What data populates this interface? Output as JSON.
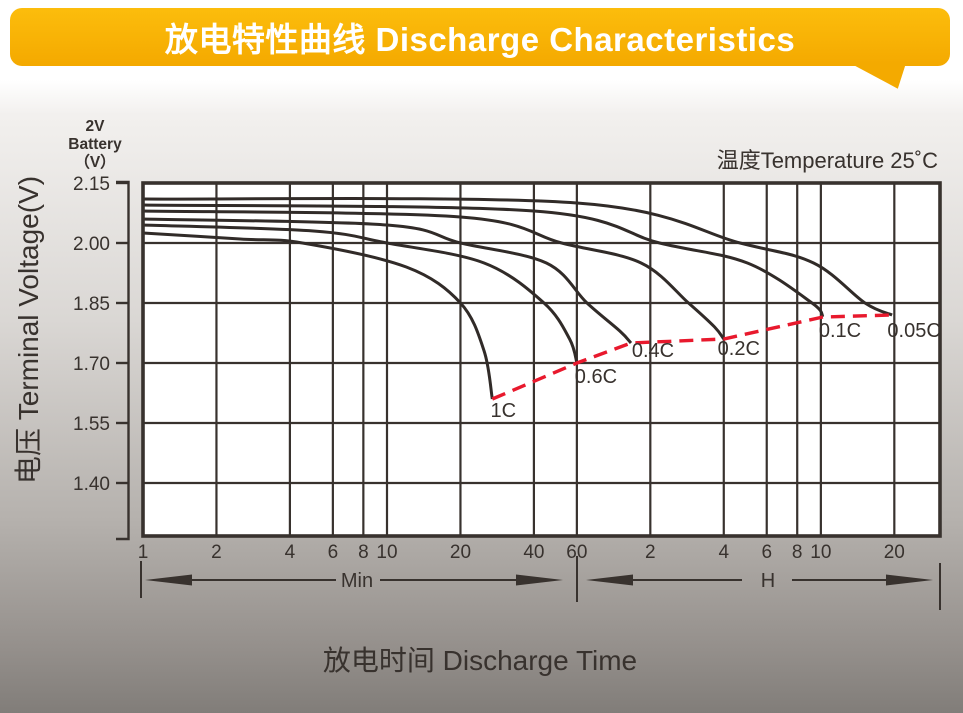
{
  "header": {
    "title": "放电特性曲线 Discharge Characteristics",
    "banner_color": "#f6ae03"
  },
  "chart": {
    "unit_label_lines": [
      "2V",
      "Battery",
      "（V）"
    ],
    "y_axis_title": "电压 Terminal Voltage(V)",
    "x_axis_title": "放电时间 Discharge Time",
    "temperature_note": "温度Temperature 25˚C",
    "range_labels": {
      "minutes": "Min",
      "hours": "H"
    }
  },
  "chart_data": {
    "type": "line",
    "title": "放电特性曲线 Discharge Characteristics",
    "xlabel": "放电时间 Discharge Time (log scale: 1–60 Min, then 2–20 H)",
    "ylabel": "电压 Terminal Voltage(V)",
    "annotation": "温度Temperature 25˚C",
    "x_scale": "log",
    "grid": true,
    "ylim": [
      1.27,
      2.15
    ],
    "y_ticks": [
      {
        "label": "2.15",
        "v": 2.15
      },
      {
        "label": "2.00",
        "v": 2.0
      },
      {
        "label": "1.85",
        "v": 1.85
      },
      {
        "label": "1.70",
        "v": 1.7
      },
      {
        "label": "1.55",
        "v": 1.55
      },
      {
        "label": "1.40",
        "v": 1.4
      }
    ],
    "x_ticks": [
      {
        "label": "1",
        "t": 1
      },
      {
        "label": "2",
        "t": 2
      },
      {
        "label": "4",
        "t": 4
      },
      {
        "label": "6",
        "t": 6
      },
      {
        "label": "8",
        "t": 8
      },
      {
        "label": "10",
        "t": 10
      },
      {
        "label": "20",
        "t": 20
      },
      {
        "label": "40",
        "t": 40
      },
      {
        "label": "60",
        "t": 60
      },
      {
        "label": "2",
        "t": 120
      },
      {
        "label": "4",
        "t": 240
      },
      {
        "label": "6",
        "t": 360
      },
      {
        "label": "8",
        "t": 480
      },
      {
        "label": "10",
        "t": 600
      },
      {
        "label": "20",
        "t": 1200
      }
    ],
    "series": [
      {
        "name": "0.05C",
        "color": "#312b28",
        "points_min_v": [
          [
            1,
            2.11
          ],
          [
            60,
            2.1
          ],
          [
            280,
            2.0
          ],
          [
            560,
            1.95
          ],
          [
            910,
            1.85
          ],
          [
            1175,
            1.82
          ]
        ]
      },
      {
        "name": "0.1C",
        "color": "#312b28",
        "points_min_v": [
          [
            1,
            2.095
          ],
          [
            40,
            2.08
          ],
          [
            131,
            2.0
          ],
          [
            300,
            1.95
          ],
          [
            552,
            1.85
          ],
          [
            612,
            1.815
          ]
        ]
      },
      {
        "name": "0.2C",
        "color": "#312b28",
        "points_min_v": [
          [
            1,
            2.08
          ],
          [
            20,
            2.065
          ],
          [
            52,
            2.0
          ],
          [
            110,
            1.95
          ],
          [
            172,
            1.85
          ],
          [
            220,
            1.79
          ],
          [
            240,
            1.76
          ]
        ]
      },
      {
        "name": "0.4C",
        "color": "#312b28",
        "points_min_v": [
          [
            1,
            2.06
          ],
          [
            10,
            2.045
          ],
          [
            20,
            2.0
          ],
          [
            45,
            1.95
          ],
          [
            66,
            1.85
          ],
          [
            90,
            1.78
          ],
          [
            100,
            1.75
          ]
        ]
      },
      {
        "name": "0.6C",
        "color": "#312b28",
        "points_min_v": [
          [
            1,
            2.045
          ],
          [
            5,
            2.03
          ],
          [
            10,
            2.0
          ],
          [
            25,
            1.95
          ],
          [
            44,
            1.85
          ],
          [
            56,
            1.76
          ],
          [
            60,
            1.7
          ]
        ]
      },
      {
        "name": "1C",
        "color": "#312b28",
        "points_min_v": [
          [
            1,
            2.025
          ],
          [
            2.5,
            2.01
          ],
          [
            4.5,
            2.0
          ],
          [
            12,
            1.94
          ],
          [
            20,
            1.85
          ],
          [
            25,
            1.73
          ],
          [
            27,
            1.61
          ]
        ]
      }
    ],
    "cutoff_line": {
      "name": "discharge-cutoff-locus",
      "color": "#e8192d",
      "style": "dashed",
      "points_min_v": [
        [
          27,
          1.61
        ],
        [
          60,
          1.7
        ],
        [
          100,
          1.75
        ],
        [
          240,
          1.76
        ],
        [
          612,
          1.815
        ],
        [
          1175,
          1.82
        ]
      ]
    }
  }
}
